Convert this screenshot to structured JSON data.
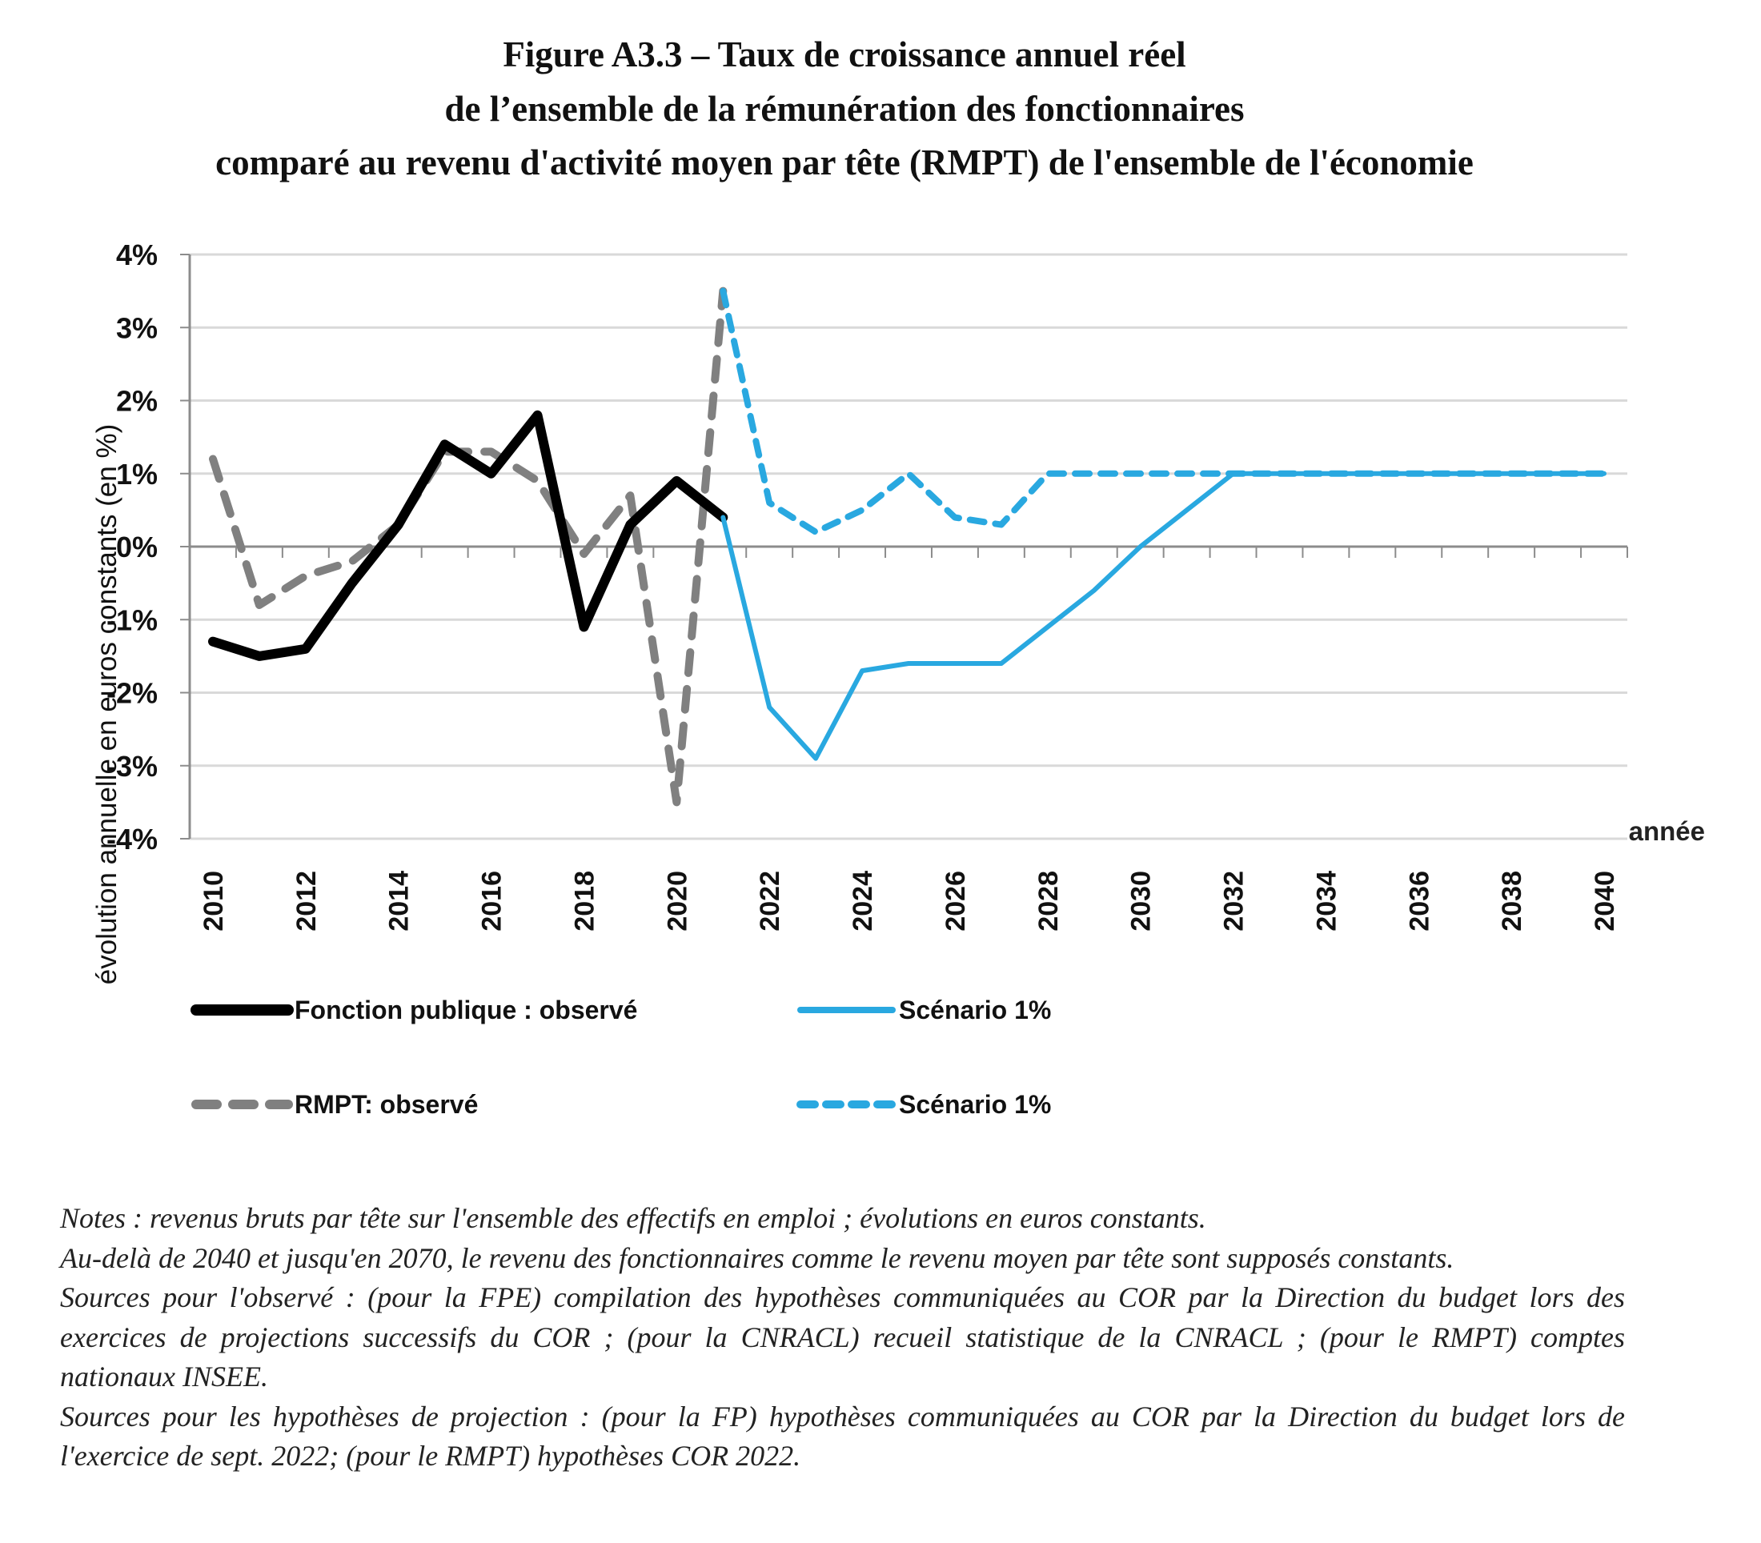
{
  "title": {
    "line1": "Figure A3.3 –  Taux de croissance annuel réel",
    "line2": "de l’ensemble de la rémunération des fonctionnaires",
    "line3": "comparé au revenu d'activité moyen par tête (RMPT) de l'ensemble de l'économie"
  },
  "chart_data": {
    "type": "line",
    "title": "Figure A3.3 – Taux de croissance annuel réel de l’ensemble de la rémunération des fonctionnaires comparé au revenu d'activité moyen par tête (RMPT) de l'ensemble de l'économie",
    "xlabel": "année",
    "ylabel": "évolution annuelle en euros constants (en %)",
    "x": [
      2010,
      2011,
      2012,
      2013,
      2014,
      2015,
      2016,
      2017,
      2018,
      2019,
      2020,
      2021,
      2022,
      2023,
      2024,
      2025,
      2026,
      2027,
      2028,
      2029,
      2030,
      2031,
      2032,
      2033,
      2034,
      2035,
      2036,
      2037,
      2038,
      2039,
      2040
    ],
    "x_tick_labels": [
      "2010",
      "2012",
      "2014",
      "2016",
      "2018",
      "2020",
      "2022",
      "2024",
      "2026",
      "2028",
      "2030",
      "2032",
      "2034",
      "2036",
      "2038",
      "2040"
    ],
    "ylim": [
      -4,
      4
    ],
    "y_ticks": [
      4,
      3,
      2,
      1,
      0,
      -1,
      -2,
      -3,
      -4
    ],
    "y_tick_labels": [
      "4%",
      "3%",
      "2%",
      "1%",
      "0%",
      "-1%",
      "-2%",
      "-3%",
      "-4%"
    ],
    "grid": true,
    "legend_position": "bottom",
    "series": [
      {
        "name": "Fonction publique : observé",
        "color": "#000000",
        "style": "solid",
        "x": [
          2010,
          2011,
          2012,
          2013,
          2014,
          2015,
          2016,
          2017,
          2018,
          2019,
          2020,
          2021
        ],
        "values": [
          -1.3,
          -1.5,
          -1.4,
          -0.5,
          0.3,
          1.4,
          1.0,
          1.8,
          -1.1,
          0.3,
          0.9,
          0.4
        ]
      },
      {
        "name": "RMPT: observé",
        "color": "#808080",
        "style": "dashed",
        "x": [
          2010,
          2011,
          2012,
          2013,
          2014,
          2015,
          2016,
          2017,
          2018,
          2019,
          2020,
          2021
        ],
        "values": [
          1.2,
          -0.8,
          -0.4,
          -0.2,
          0.3,
          1.3,
          1.3,
          0.9,
          -0.1,
          0.7,
          -3.5,
          3.5
        ]
      },
      {
        "name": "Scénario 1%",
        "color": "#29A8E0",
        "style": "solid",
        "x": [
          2021,
          2022,
          2023,
          2024,
          2025,
          2026,
          2027,
          2028,
          2029,
          2030,
          2031,
          2032,
          2033,
          2034,
          2035,
          2036,
          2037,
          2038,
          2039,
          2040
        ],
        "values": [
          0.4,
          -2.2,
          -2.9,
          -1.7,
          -1.6,
          -1.6,
          -1.6,
          -1.1,
          -0.6,
          0.0,
          0.5,
          1.0,
          1.0,
          1.0,
          1.0,
          1.0,
          1.0,
          1.0,
          1.0,
          1.0
        ]
      },
      {
        "name": "Scénario 1%",
        "color": "#29A8E0",
        "style": "dashed",
        "x": [
          2021,
          2022,
          2023,
          2024,
          2025,
          2026,
          2027,
          2028,
          2029,
          2030,
          2031,
          2032,
          2033,
          2034,
          2035,
          2036,
          2037,
          2038,
          2039,
          2040
        ],
        "values": [
          3.5,
          0.6,
          0.2,
          0.5,
          1.0,
          0.4,
          0.3,
          1.0,
          1.0,
          1.0,
          1.0,
          1.0,
          1.0,
          1.0,
          1.0,
          1.0,
          1.0,
          1.0,
          1.0,
          1.0
        ]
      }
    ]
  },
  "legend": {
    "items": [
      {
        "label": "Fonction publique : observé"
      },
      {
        "label": "Scénario 1%"
      },
      {
        "label": "RMPT: observé"
      },
      {
        "label": "Scénario 1%"
      }
    ]
  },
  "notes": {
    "lines": [
      "Notes : revenus bruts par tête sur l'ensemble des effectifs en emploi ; évolutions en euros constants.",
      "Au-delà de 2040 et jusqu'en 2070, le revenu des fonctionnaires comme le revenu moyen par tête sont supposés constants.",
      "Sources pour l'observé : (pour la FPE) compilation des hypothèses communiquées au COR par la Direction du budget lors des exercices de projections successifs du COR ; (pour la CNRACL) recueil statistique de la CNRACL ; (pour le RMPT) comptes nationaux INSEE.",
      "Sources pour les hypothèses de projection : (pour la FP) hypothèses communiquées au COR par la Direction du budget lors de l'exercice de sept. 2022; (pour le RMPT) hypothèses COR 2022."
    ]
  }
}
